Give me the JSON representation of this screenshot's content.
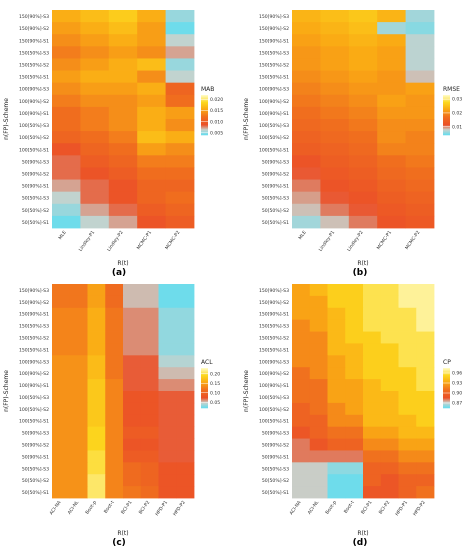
{
  "chart_data": [
    {
      "type": "heatmap",
      "panel_label": "(a)",
      "ylabel": "n(FP)-Scheme",
      "xlabel": "R(t)",
      "legend_title": "MAB",
      "legend_ticks": [
        "0.020",
        "0.015",
        "0.010",
        "0.005"
      ],
      "x": [
        "MLE",
        "Lindley-P1",
        "Lindley-P2",
        "MCMC-P1",
        "MCMC-P2"
      ],
      "y": [
        "150[90%]-S3",
        "150[90%]-S2",
        "150[90%]-S1",
        "150[50%]-S3",
        "150[50%]-S2",
        "150[50%]-S1",
        "100[90%]-S3",
        "100[90%]-S2",
        "100[90%]-S1",
        "100[50%]-S3",
        "100[50%]-S2",
        "100[50%]-S1",
        "50[90%]-S3",
        "50[90%]-S2",
        "50[90%]-S1",
        "50[50%]-S3",
        "50[50%]-S2",
        "50[50%]-S1"
      ],
      "values": [
        [
          0.016,
          0.017,
          0.018,
          0.016,
          0.005
        ],
        [
          0.015,
          0.016,
          0.017,
          0.015,
          0.004
        ],
        [
          0.014,
          0.015,
          0.016,
          0.015,
          0.006
        ],
        [
          0.013,
          0.014,
          0.015,
          0.014,
          0.007
        ],
        [
          0.014,
          0.015,
          0.016,
          0.017,
          0.005
        ],
        [
          0.015,
          0.016,
          0.016,
          0.014,
          0.006
        ],
        [
          0.014,
          0.015,
          0.015,
          0.016,
          0.011
        ],
        [
          0.013,
          0.014,
          0.014,
          0.015,
          0.012
        ],
        [
          0.012,
          0.013,
          0.014,
          0.016,
          0.015
        ],
        [
          0.012,
          0.013,
          0.014,
          0.016,
          0.014
        ],
        [
          0.011,
          0.012,
          0.013,
          0.017,
          0.016
        ],
        [
          0.009,
          0.011,
          0.012,
          0.015,
          0.014
        ],
        [
          0.008,
          0.01,
          0.011,
          0.013,
          0.013
        ],
        [
          0.008,
          0.009,
          0.01,
          0.012,
          0.012
        ],
        [
          0.007,
          0.008,
          0.009,
          0.011,
          0.011
        ],
        [
          0.006,
          0.008,
          0.009,
          0.011,
          0.012
        ],
        [
          0.005,
          0.007,
          0.008,
          0.01,
          0.011
        ],
        [
          0.004,
          0.006,
          0.007,
          0.009,
          0.01
        ]
      ],
      "legend_range": [
        0.004,
        0.022
      ]
    },
    {
      "type": "heatmap",
      "panel_label": "(b)",
      "ylabel": "n(FP)-Scheme",
      "xlabel": "R(t)",
      "legend_title": "RMSE",
      "legend_ticks": [
        "0.03",
        "0.02",
        "0.01"
      ],
      "x": [
        "MLE",
        "Lindley-P1",
        "Lindley-P2",
        "MCMC-P1",
        "MCMC-P2"
      ],
      "y": [
        "150[90%]-S3",
        "150[90%]-S2",
        "150[90%]-S1",
        "150[50%]-S3",
        "150[50%]-S2",
        "150[50%]-S1",
        "100[90%]-S3",
        "100[90%]-S2",
        "100[90%]-S1",
        "100[50%]-S3",
        "100[50%]-S2",
        "100[50%]-S1",
        "50[90%]-S3",
        "50[90%]-S2",
        "50[90%]-S1",
        "50[50%]-S3",
        "50[50%]-S2",
        "50[50%]-S1"
      ],
      "values": [
        [
          0.024,
          0.025,
          0.026,
          0.024,
          0.006
        ],
        [
          0.023,
          0.024,
          0.025,
          0.006,
          0.005
        ],
        [
          0.022,
          0.023,
          0.024,
          0.023,
          0.007
        ],
        [
          0.021,
          0.022,
          0.023,
          0.022,
          0.007
        ],
        [
          0.021,
          0.022,
          0.023,
          0.022,
          0.007
        ],
        [
          0.02,
          0.021,
          0.022,
          0.021,
          0.008
        ],
        [
          0.019,
          0.02,
          0.021,
          0.021,
          0.022
        ],
        [
          0.018,
          0.019,
          0.02,
          0.022,
          0.021
        ],
        [
          0.017,
          0.018,
          0.019,
          0.021,
          0.021
        ],
        [
          0.016,
          0.017,
          0.018,
          0.02,
          0.02
        ],
        [
          0.015,
          0.016,
          0.017,
          0.02,
          0.019
        ],
        [
          0.014,
          0.015,
          0.016,
          0.019,
          0.019
        ],
        [
          0.012,
          0.014,
          0.015,
          0.017,
          0.018
        ],
        [
          0.011,
          0.013,
          0.014,
          0.016,
          0.017
        ],
        [
          0.01,
          0.012,
          0.013,
          0.015,
          0.016
        ],
        [
          0.009,
          0.011,
          0.012,
          0.014,
          0.015
        ],
        [
          0.008,
          0.01,
          0.011,
          0.013,
          0.014
        ],
        [
          0.006,
          0.008,
          0.01,
          0.012,
          0.013
        ]
      ],
      "legend_range": [
        0.004,
        0.033
      ]
    },
    {
      "type": "heatmap",
      "panel_label": "(c)",
      "ylabel": "n(FP)-Scheme",
      "xlabel": "R(t)",
      "legend_title": "ACL",
      "legend_ticks": [
        "0.20",
        "0.15",
        "0.10",
        "0.05"
      ],
      "x": [
        "ACI-NA",
        "ACI-NL",
        "Boot-p",
        "Boot-t",
        "BCI-P1",
        "BCI-P2",
        "HPD-P1",
        "HPD-P2"
      ],
      "y": [
        "150[90%]-S3",
        "150[90%]-S2",
        "150[90%]-S1",
        "150[50%]-S3",
        "150[50%]-S2",
        "150[50%]-S1",
        "100[90%]-S3",
        "100[90%]-S2",
        "100[90%]-S1",
        "100[50%]-S3",
        "100[50%]-S2",
        "100[50%]-S1",
        "50[90%]-S3",
        "50[90%]-S2",
        "50[90%]-S1",
        "50[50%]-S3",
        "50[50%]-S2",
        "50[50%]-S1"
      ],
      "values": [
        [
          0.12,
          0.12,
          0.15,
          0.11,
          0.05,
          0.05,
          0.02,
          0.02
        ],
        [
          0.12,
          0.12,
          0.15,
          0.11,
          0.05,
          0.05,
          0.02,
          0.02
        ],
        [
          0.13,
          0.13,
          0.16,
          0.12,
          0.06,
          0.06,
          0.03,
          0.03
        ],
        [
          0.13,
          0.13,
          0.16,
          0.12,
          0.06,
          0.06,
          0.03,
          0.03
        ],
        [
          0.13,
          0.13,
          0.16,
          0.12,
          0.06,
          0.06,
          0.03,
          0.03
        ],
        [
          0.13,
          0.13,
          0.16,
          0.12,
          0.06,
          0.06,
          0.03,
          0.03
        ],
        [
          0.14,
          0.14,
          0.17,
          0.12,
          0.07,
          0.07,
          0.04,
          0.04
        ],
        [
          0.14,
          0.14,
          0.17,
          0.12,
          0.07,
          0.07,
          0.05,
          0.05
        ],
        [
          0.14,
          0.14,
          0.18,
          0.13,
          0.07,
          0.07,
          0.06,
          0.06
        ],
        [
          0.14,
          0.14,
          0.18,
          0.13,
          0.08,
          0.08,
          0.07,
          0.07
        ],
        [
          0.14,
          0.14,
          0.18,
          0.13,
          0.08,
          0.08,
          0.07,
          0.07
        ],
        [
          0.14,
          0.14,
          0.18,
          0.13,
          0.08,
          0.08,
          0.07,
          0.07
        ],
        [
          0.14,
          0.14,
          0.19,
          0.13,
          0.09,
          0.09,
          0.07,
          0.07
        ],
        [
          0.14,
          0.14,
          0.19,
          0.13,
          0.08,
          0.08,
          0.07,
          0.07
        ],
        [
          0.14,
          0.14,
          0.2,
          0.13,
          0.09,
          0.09,
          0.07,
          0.07
        ],
        [
          0.14,
          0.14,
          0.2,
          0.13,
          0.11,
          0.1,
          0.08,
          0.08
        ],
        [
          0.14,
          0.14,
          0.21,
          0.13,
          0.11,
          0.1,
          0.08,
          0.08
        ],
        [
          0.14,
          0.14,
          0.21,
          0.13,
          0.12,
          0.11,
          0.08,
          0.08
        ]
      ],
      "legend_range": [
        0.02,
        0.23
      ]
    },
    {
      "type": "heatmap",
      "panel_label": "(d)",
      "ylabel": "n(FP)-Scheme",
      "xlabel": "R(t)",
      "legend_title": "CP",
      "legend_ticks": [
        "0.96",
        "0.93",
        "0.90",
        "0.87"
      ],
      "x": [
        "ACI-NA",
        "ACI-NL",
        "Boot-p",
        "Boot-t",
        "BCI-P1",
        "BCI-P2",
        "HPD-P1",
        "HPD-P2"
      ],
      "y": [
        "150[90%]-S3",
        "150[90%]-S2",
        "150[90%]-S1",
        "150[50%]-S3",
        "150[50%]-S2",
        "150[50%]-S1",
        "100[90%]-S3",
        "100[90%]-S2",
        "100[90%]-S1",
        "100[50%]-S3",
        "100[50%]-S2",
        "100[50%]-S1",
        "50[90%]-S3",
        "50[90%]-S2",
        "50[90%]-S1",
        "50[50%]-S3",
        "50[50%]-S2",
        "50[50%]-S1"
      ],
      "values": [
        [
          0.93,
          0.94,
          0.95,
          0.95,
          0.96,
          0.96,
          0.97,
          0.97
        ],
        [
          0.93,
          0.93,
          0.95,
          0.95,
          0.96,
          0.96,
          0.97,
          0.97
        ],
        [
          0.93,
          0.93,
          0.94,
          0.95,
          0.96,
          0.96,
          0.96,
          0.97
        ],
        [
          0.92,
          0.93,
          0.94,
          0.95,
          0.96,
          0.96,
          0.96,
          0.97
        ],
        [
          0.92,
          0.92,
          0.94,
          0.95,
          0.95,
          0.96,
          0.96,
          0.96
        ],
        [
          0.92,
          0.92,
          0.94,
          0.94,
          0.95,
          0.95,
          0.96,
          0.96
        ],
        [
          0.92,
          0.92,
          0.93,
          0.94,
          0.95,
          0.95,
          0.96,
          0.96
        ],
        [
          0.91,
          0.92,
          0.93,
          0.94,
          0.95,
          0.95,
          0.95,
          0.96
        ],
        [
          0.91,
          0.91,
          0.93,
          0.93,
          0.94,
          0.95,
          0.95,
          0.96
        ],
        [
          0.91,
          0.91,
          0.93,
          0.93,
          0.94,
          0.94,
          0.95,
          0.95
        ],
        [
          0.9,
          0.91,
          0.92,
          0.93,
          0.94,
          0.94,
          0.95,
          0.95
        ],
        [
          0.9,
          0.9,
          0.92,
          0.92,
          0.94,
          0.94,
          0.94,
          0.95
        ],
        [
          0.89,
          0.9,
          0.91,
          0.91,
          0.93,
          0.93,
          0.94,
          0.94
        ],
        [
          0.88,
          0.89,
          0.9,
          0.9,
          0.92,
          0.92,
          0.93,
          0.93
        ],
        [
          0.88,
          0.88,
          0.88,
          0.88,
          0.91,
          0.91,
          0.92,
          0.92
        ],
        [
          0.87,
          0.87,
          0.86,
          0.86,
          0.9,
          0.9,
          0.91,
          0.91
        ],
        [
          0.87,
          0.87,
          0.85,
          0.85,
          0.9,
          0.89,
          0.9,
          0.9
        ],
        [
          0.87,
          0.87,
          0.85,
          0.85,
          0.89,
          0.89,
          0.9,
          0.91
        ]
      ],
      "legend_range": [
        0.855,
        0.975
      ]
    }
  ]
}
